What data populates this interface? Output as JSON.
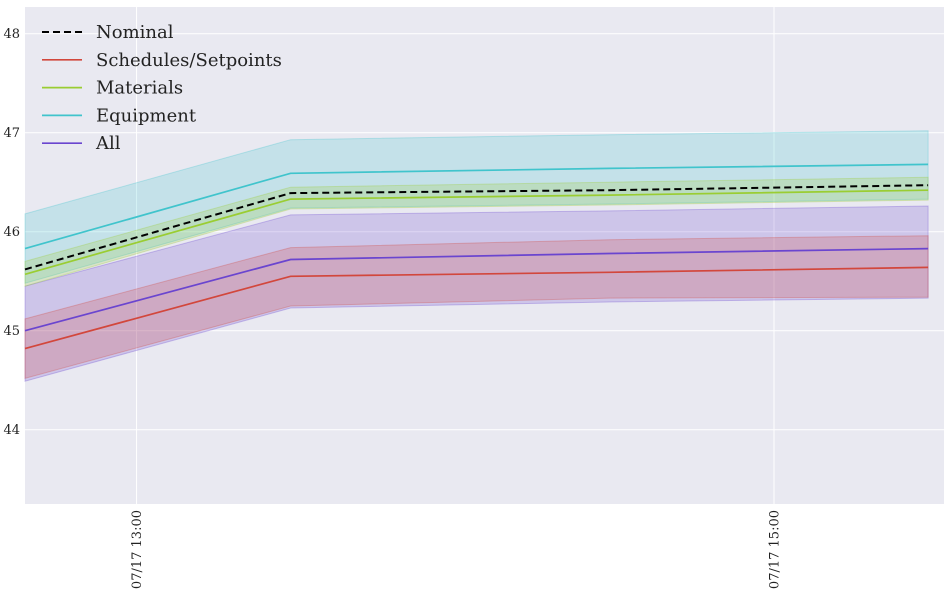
{
  "chart_data": {
    "type": "line",
    "title": "",
    "xlabel": "",
    "ylabel": "",
    "x": [
      "07/17 12:39",
      "07/17 13:29",
      "07/17 14:29",
      "07/17 15:29"
    ],
    "xlim": [
      "07/17 12:39",
      "07/17 15:32"
    ],
    "ylim": [
      43.25,
      48.27
    ],
    "x_ticks": [
      {
        "value": "07/17 13:00",
        "label": "07/17  13:00"
      },
      {
        "value": "07/17 15:00",
        "label": "07/17  15:00"
      }
    ],
    "y_ticks": [
      44,
      45,
      46,
      47,
      48
    ],
    "grid": true,
    "legend_position": "top-left",
    "background": "#e9e9f1",
    "series": [
      {
        "name": "Nominal",
        "color": "#000000",
        "dash": true,
        "band": false,
        "values": [
          45.62,
          46.39,
          46.42,
          46.47
        ]
      },
      {
        "name": "Schedules/Setpoints",
        "color": "#d2473c",
        "dash": false,
        "band": true,
        "values": [
          44.82,
          45.55,
          45.59,
          45.64
        ],
        "lower": [
          44.52,
          45.25,
          45.33,
          45.34
        ],
        "upper": [
          45.12,
          45.84,
          45.92,
          45.96
        ]
      },
      {
        "name": "Materials",
        "color": "#9acd32",
        "dash": false,
        "band": true,
        "values": [
          45.57,
          46.33,
          46.37,
          46.42
        ],
        "lower": [
          45.45,
          46.23,
          46.27,
          46.32
        ],
        "upper": [
          45.7,
          46.45,
          46.5,
          46.55
        ]
      },
      {
        "name": "Equipment",
        "color": "#40c4cc",
        "dash": false,
        "band": true,
        "values": [
          45.83,
          46.59,
          46.64,
          46.68
        ],
        "lower": [
          45.48,
          46.24,
          46.28,
          46.33
        ],
        "upper": [
          46.18,
          46.93,
          46.98,
          47.02
        ]
      },
      {
        "name": "All",
        "color": "#6a45cf",
        "dash": false,
        "band": true,
        "values": [
          45.0,
          45.72,
          45.78,
          45.83
        ],
        "lower": [
          44.49,
          45.23,
          45.29,
          45.33
        ],
        "upper": [
          45.45,
          46.17,
          46.21,
          46.26
        ]
      }
    ],
    "band_order": [
      "Equipment",
      "All",
      "Schedules/Setpoints",
      "Materials"
    ]
  }
}
